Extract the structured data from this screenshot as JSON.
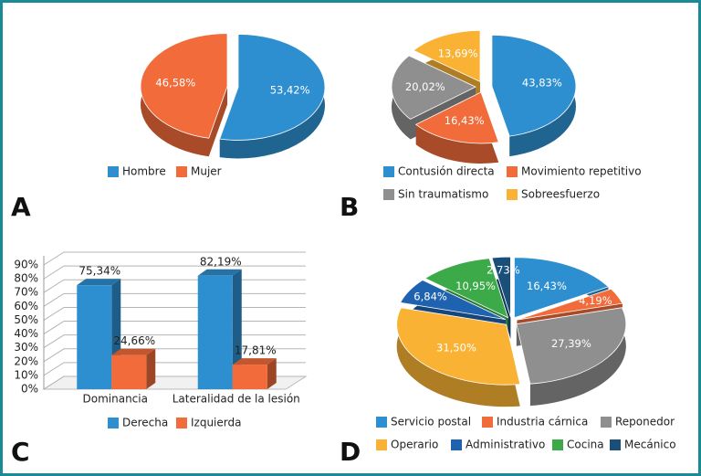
{
  "chart_data": [
    {
      "type": "pie",
      "panel_label": "A",
      "categories": [
        "Hombre",
        "Mujer"
      ],
      "values": [
        53.42,
        46.58
      ],
      "value_labels": [
        "53,42%",
        "46,58%"
      ],
      "colors": [
        "#2e8fd0",
        "#f26b3a"
      ]
    },
    {
      "type": "pie",
      "panel_label": "B",
      "categories": [
        "Contusión directa",
        "Movimiento repetitivo",
        "Sin traumatismo",
        "Sobreesfuerzo"
      ],
      "values": [
        43.83,
        16.43,
        20.02,
        13.69
      ],
      "value_labels": [
        "43,83%",
        "16,43%",
        "20,02%",
        "13,69%"
      ],
      "colors": [
        "#2e8fd0",
        "#f26b3a",
        "#8f8f8f",
        "#f9b233"
      ]
    },
    {
      "type": "bar",
      "panel_label": "C",
      "categories": [
        "Dominancia",
        "Lateralidad de la lesión"
      ],
      "series": [
        {
          "name": "Derecha",
          "color": "#2e8fd0",
          "values": [
            75.34,
            82.19
          ],
          "value_labels": [
            "75,34%",
            "82,19%"
          ]
        },
        {
          "name": "Izquierda",
          "color": "#f26b3a",
          "values": [
            24.66,
            17.81
          ],
          "value_labels": [
            "24,66%",
            "17,81%"
          ]
        }
      ],
      "ylim": [
        0,
        90
      ],
      "yticks": [
        {
          "value": 0,
          "label": "0%"
        },
        {
          "value": 10,
          "label": "10%"
        },
        {
          "value": 20,
          "label": "20%"
        },
        {
          "value": 30,
          "label": "30%"
        },
        {
          "value": 40,
          "label": "40%"
        },
        {
          "value": 50,
          "label": "50%"
        },
        {
          "value": 60,
          "label": "60%"
        },
        {
          "value": 70,
          "label": "70%"
        },
        {
          "value": 80,
          "label": "80%"
        },
        {
          "value": 90,
          "label": "90%"
        }
      ],
      "grid": true
    },
    {
      "type": "pie",
      "panel_label": "D",
      "categories": [
        "Servicio postal",
        "Industria cárnica",
        "Reponedor",
        "Operario",
        "Administrativo",
        "Cocina",
        "Mecánico"
      ],
      "values": [
        16.43,
        4.19,
        27.39,
        31.5,
        6.84,
        10.95,
        2.73
      ],
      "value_labels": [
        "16,43%",
        "4,19%",
        "27,39%",
        "31,50%",
        "6,84%",
        "10,95%",
        "2,73%"
      ],
      "colors": [
        "#2e8fd0",
        "#f26b3a",
        "#8f8f8f",
        "#f9b233",
        "#1f63b0",
        "#3daa4a",
        "#1a4f7a"
      ]
    }
  ]
}
